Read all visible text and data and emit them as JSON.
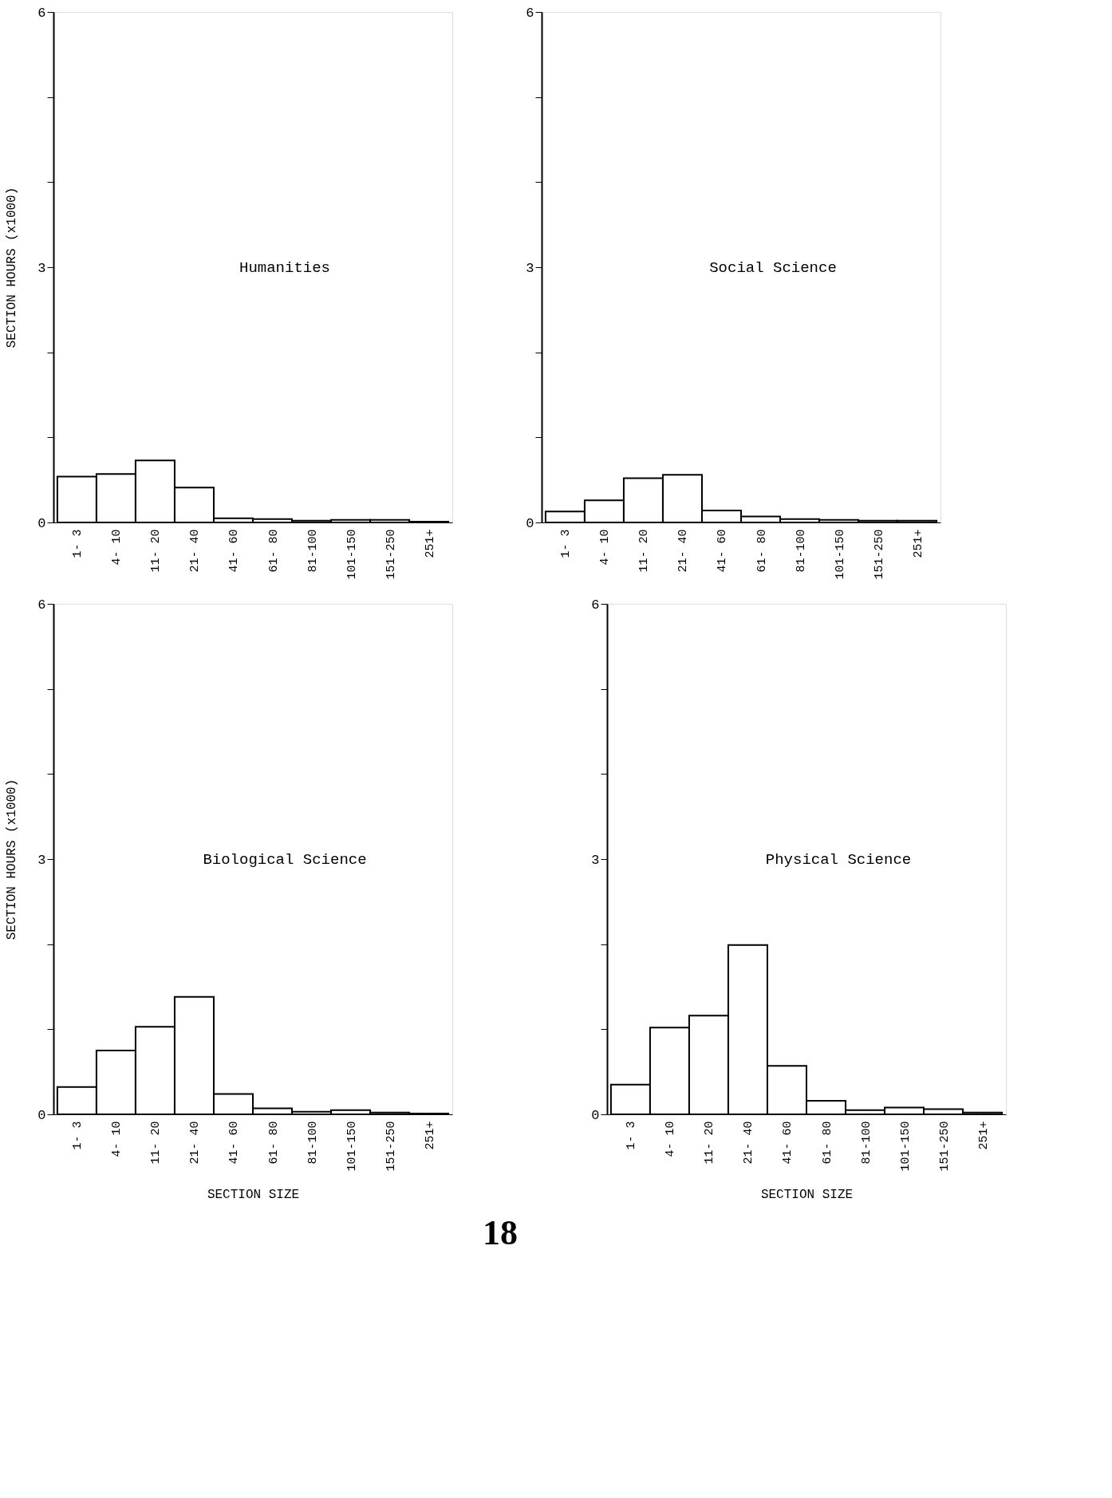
{
  "chart_data": [
    {
      "type": "bar",
      "title": "Humanities",
      "ylabel": "SECTION HOURS (x1000)",
      "categories": [
        "1-  3",
        "4- 10",
        "11- 20",
        "21- 40",
        "41- 60",
        "61- 80",
        "81-100",
        "101-150",
        "151-250",
        "251+"
      ],
      "values": [
        0.54,
        0.57,
        0.73,
        0.41,
        0.05,
        0.04,
        0.02,
        0.03,
        0.03,
        0.01
      ],
      "color": "#ffffff",
      "ylim": [
        0,
        6
      ],
      "yticks": [
        0,
        {
          "value": 1,
          "label": null
        },
        {
          "value": 2,
          "label": null
        },
        3,
        {
          "value": 4,
          "label": null
        },
        {
          "value": 5,
          "label": null
        },
        6
      ],
      "grid": false
    },
    {
      "type": "bar",
      "title": "Social Science",
      "categories": [
        "1-  3",
        "4- 10",
        "11- 20",
        "21- 40",
        "41- 60",
        "61- 80",
        "81-100",
        "101-150",
        "151-250",
        "251+"
      ],
      "values": [
        0.13,
        0.26,
        0.52,
        0.56,
        0.14,
        0.07,
        0.04,
        0.03,
        0.02,
        0.02
      ],
      "color": "#ffffff",
      "ylim": [
        0,
        6
      ],
      "yticks": [
        0,
        {
          "value": 1,
          "label": null
        },
        {
          "value": 2,
          "label": null
        },
        3,
        {
          "value": 4,
          "label": null
        },
        {
          "value": 5,
          "label": null
        },
        6
      ],
      "grid": false
    },
    {
      "type": "bar",
      "title": "Biological Science",
      "ylabel": "SECTION HOURS (x1000)",
      "xlabel": "SECTION SIZE",
      "annotations": [
        "18"
      ],
      "categories": [
        "1-  3",
        "4- 10",
        "11- 20",
        "21- 40",
        "41- 60",
        "61- 80",
        "81-100",
        "101-150",
        "151-250",
        "251+"
      ],
      "values": [
        0.32,
        0.75,
        1.03,
        1.38,
        0.24,
        0.07,
        0.03,
        0.05,
        0.02,
        0.01
      ],
      "color": "#ffffff",
      "ylim": [
        0,
        6
      ],
      "yticks": [
        0,
        {
          "value": 1,
          "label": null
        },
        {
          "value": 2,
          "label": null
        },
        3,
        {
          "value": 4,
          "label": null
        },
        {
          "value": 5,
          "label": null
        },
        6
      ],
      "grid": false
    },
    {
      "type": "bar",
      "title": "Physical Science",
      "xlabel": "SECTION SIZE",
      "categories": [
        "1-  3",
        "4- 10",
        "11- 20",
        "21- 40",
        "41- 60",
        "61- 80",
        "81-100",
        "101-150",
        "151-250",
        "251+"
      ],
      "values": [
        0.35,
        1.02,
        1.16,
        1.99,
        0.57,
        0.16,
        0.05,
        0.08,
        0.06,
        0.02
      ],
      "color": "#ffffff",
      "ylim": [
        0,
        6
      ],
      "yticks": [
        0,
        {
          "value": 1,
          "label": null
        },
        {
          "value": 2,
          "label": null
        },
        3,
        {
          "value": 4,
          "label": null
        },
        {
          "value": 5,
          "label": null
        },
        6
      ],
      "grid": false
    }
  ]
}
